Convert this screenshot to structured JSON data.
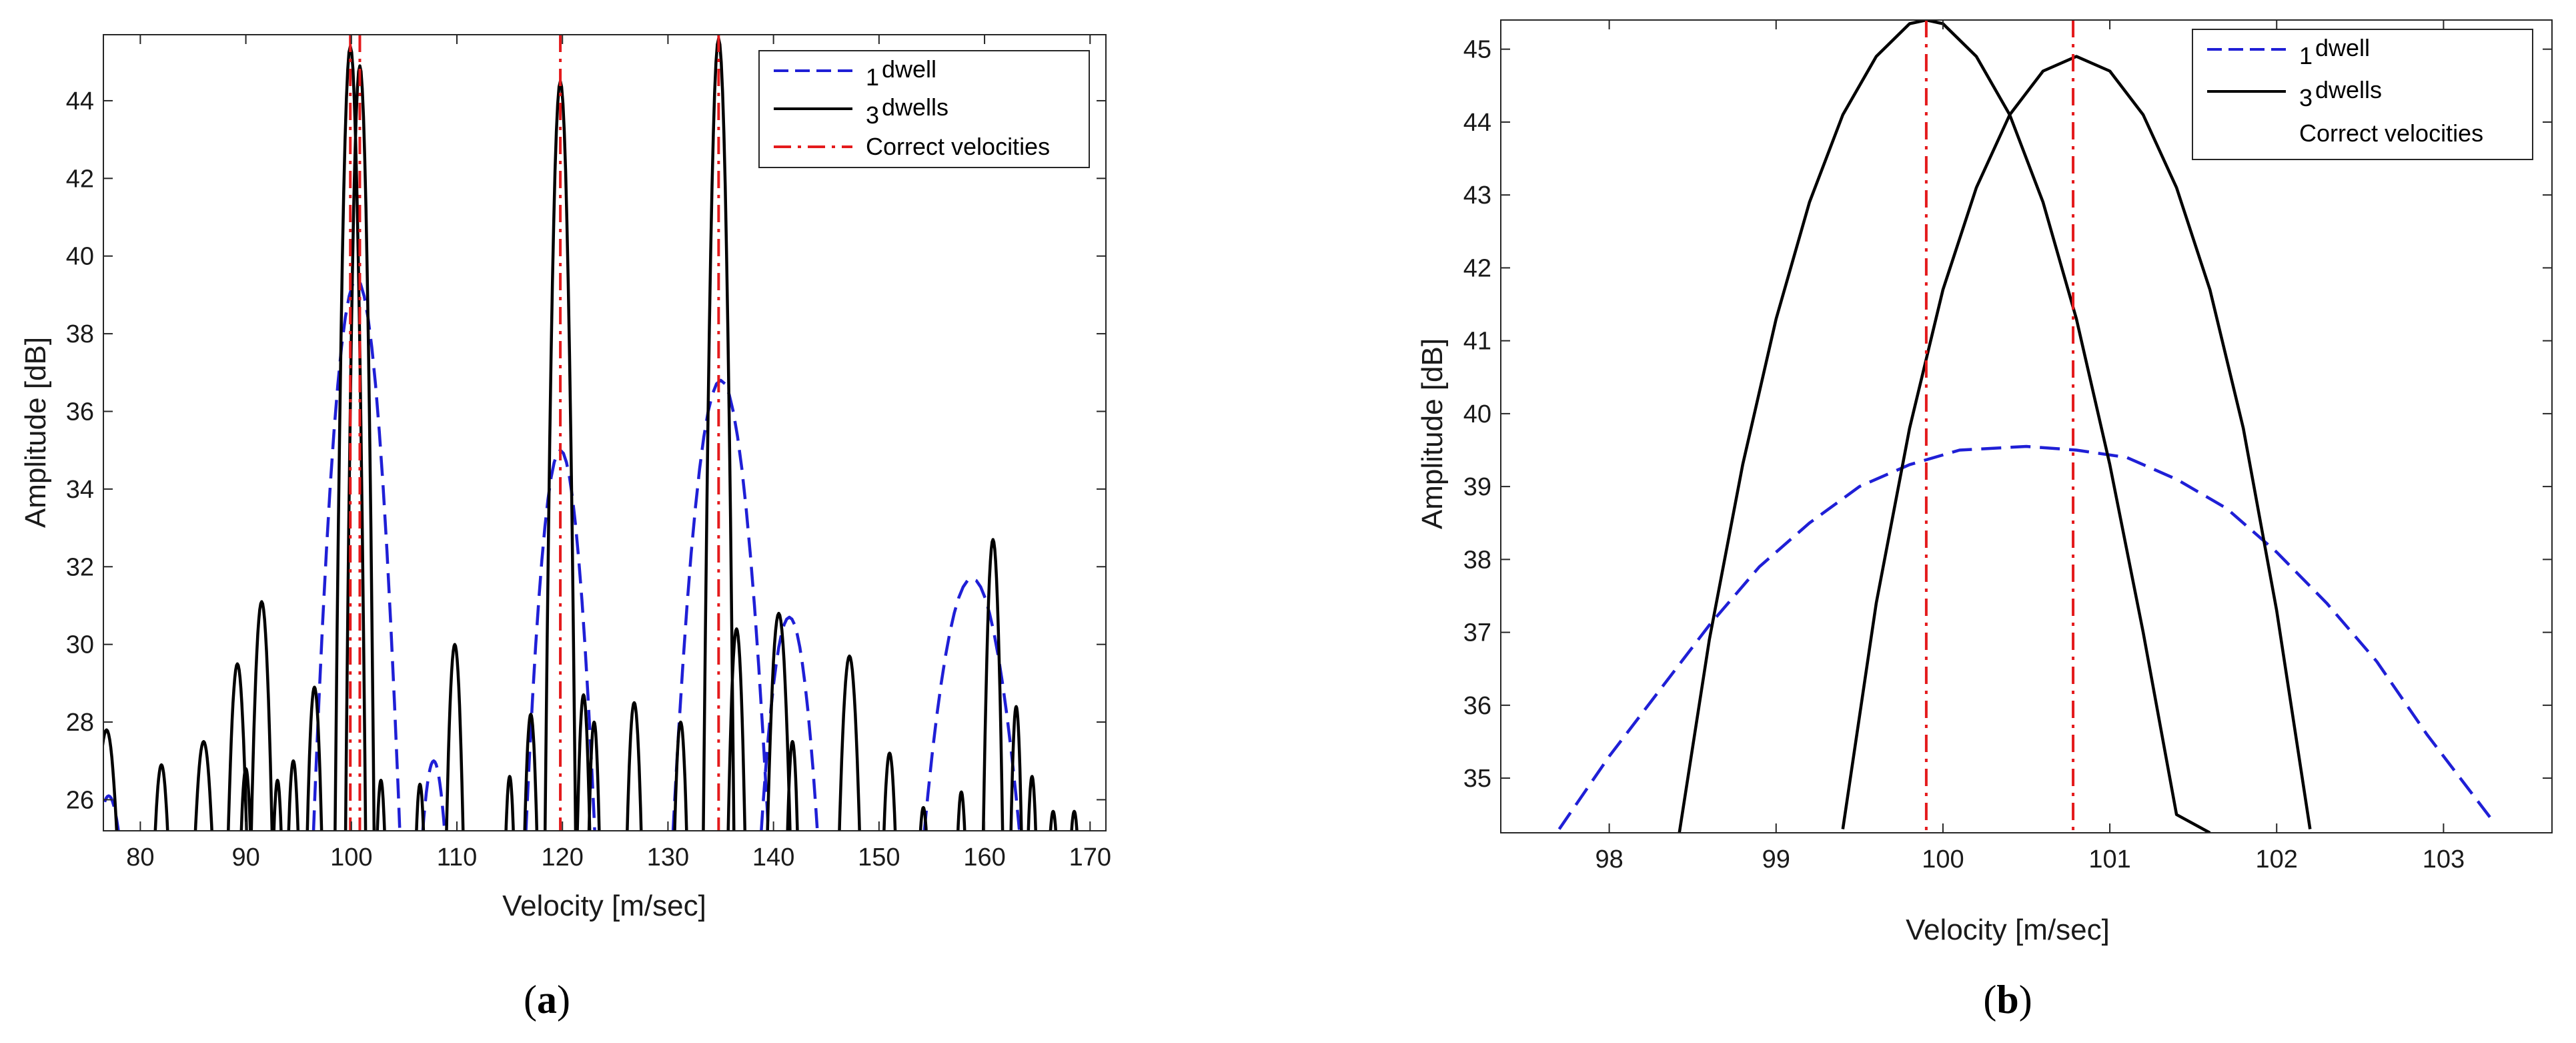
{
  "panels": [
    {
      "label_open": "(",
      "letter": "a",
      "label_close": ")"
    },
    {
      "label_open": "(",
      "letter": "b",
      "label_close": ")"
    }
  ],
  "chart_data": [
    {
      "type": "line",
      "id": "a",
      "xlabel": "Velocity [m/sec]",
      "ylabel": "Amplitude [dB]",
      "xlim": [
        76.5,
        171.5
      ],
      "ylim": [
        25.2,
        45.7
      ],
      "xticks": [
        80,
        90,
        100,
        110,
        120,
        130,
        140,
        150,
        160,
        170
      ],
      "yticks": [
        26,
        28,
        30,
        32,
        34,
        36,
        38,
        40,
        42,
        44
      ],
      "legend_position": "top-right",
      "legend": [
        {
          "num": "1",
          "text": "dwell",
          "style": "dashed-blue"
        },
        {
          "num": "3",
          "text": "dwells",
          "style": "solid-black"
        },
        {
          "num": "",
          "text": "Correct velocities",
          "style": "dashdot-red"
        }
      ],
      "series": [
        {
          "name": "1 dwell",
          "color": "#1f1fd6",
          "style": "dashed",
          "lobes": [
            {
              "center": 77.0,
              "peak": 26.1,
              "half_width": 1.5
            },
            {
              "center": 100.5,
              "peak": 39.4,
              "half_width": 4.3
            },
            {
              "center": 107.8,
              "peak": 27.0,
              "half_width": 1.4
            },
            {
              "center": 119.8,
              "peak": 35.0,
              "half_width": 3.5
            },
            {
              "center": 135.0,
              "peak": 36.8,
              "half_width": 4.8
            },
            {
              "center": 141.5,
              "peak": 30.7,
              "half_width": 3.0
            },
            {
              "center": 158.8,
              "peak": 31.7,
              "half_width": 5.0
            }
          ]
        },
        {
          "name": "3 dwells",
          "color": "#000000",
          "style": "solid",
          "lobes": [
            {
              "center": 76.8,
              "peak": 27.8,
              "half_width": 1.2
            },
            {
              "center": 82.0,
              "peak": 26.9,
              "half_width": 0.8
            },
            {
              "center": 86.0,
              "peak": 27.5,
              "half_width": 1.0
            },
            {
              "center": 89.2,
              "peak": 29.5,
              "half_width": 1.0
            },
            {
              "center": 90.0,
              "peak": 26.8,
              "half_width": 0.6
            },
            {
              "center": 91.5,
              "peak": 31.1,
              "half_width": 1.1
            },
            {
              "center": 93.0,
              "peak": 26.5,
              "half_width": 0.5
            },
            {
              "center": 94.5,
              "peak": 27.0,
              "half_width": 0.6
            },
            {
              "center": 96.5,
              "peak": 28.9,
              "half_width": 0.8
            },
            {
              "center": 99.9,
              "peak": 45.4,
              "half_width": 1.5
            },
            {
              "center": 100.8,
              "peak": 44.9,
              "half_width": 1.4
            },
            {
              "center": 102.8,
              "peak": 26.5,
              "half_width": 0.5
            },
            {
              "center": 106.5,
              "peak": 26.4,
              "half_width": 0.5
            },
            {
              "center": 109.8,
              "peak": 30.0,
              "half_width": 0.9
            },
            {
              "center": 115.0,
              "peak": 26.6,
              "half_width": 0.5
            },
            {
              "center": 117.0,
              "peak": 28.2,
              "half_width": 0.7
            },
            {
              "center": 119.8,
              "peak": 44.5,
              "half_width": 1.5
            },
            {
              "center": 122.0,
              "peak": 28.7,
              "half_width": 0.7
            },
            {
              "center": 123.0,
              "peak": 28.0,
              "half_width": 0.6
            },
            {
              "center": 126.8,
              "peak": 28.5,
              "half_width": 0.8
            },
            {
              "center": 131.2,
              "peak": 28.0,
              "half_width": 0.7
            },
            {
              "center": 134.8,
              "peak": 45.6,
              "half_width": 1.5
            },
            {
              "center": 136.5,
              "peak": 30.4,
              "half_width": 0.9
            },
            {
              "center": 140.5,
              "peak": 30.8,
              "half_width": 1.2
            },
            {
              "center": 141.8,
              "peak": 27.5,
              "half_width": 0.6
            },
            {
              "center": 147.2,
              "peak": 29.7,
              "half_width": 1.1
            },
            {
              "center": 151.0,
              "peak": 27.2,
              "half_width": 0.7
            },
            {
              "center": 154.2,
              "peak": 25.8,
              "half_width": 0.5
            },
            {
              "center": 157.8,
              "peak": 26.2,
              "half_width": 0.5
            },
            {
              "center": 160.8,
              "peak": 32.7,
              "half_width": 1.0
            },
            {
              "center": 163.0,
              "peak": 28.4,
              "half_width": 0.6
            },
            {
              "center": 164.5,
              "peak": 26.6,
              "half_width": 0.5
            },
            {
              "center": 166.5,
              "peak": 25.7,
              "half_width": 0.5
            },
            {
              "center": 168.5,
              "peak": 25.7,
              "half_width": 0.5
            }
          ]
        }
      ],
      "vlines": {
        "name": "Correct velocities",
        "color": "#e41a1c",
        "style": "dashdot",
        "x": [
          99.9,
          100.8,
          119.8,
          134.8
        ]
      }
    },
    {
      "type": "line",
      "id": "b",
      "xlabel": "Velocity [m/sec]",
      "ylabel": "Amplitude [dB]",
      "xlim": [
        97.35,
        103.65
      ],
      "ylim": [
        34.25,
        45.4
      ],
      "xticks": [
        98,
        99,
        100,
        101,
        102,
        103
      ],
      "yticks": [
        35,
        36,
        37,
        38,
        39,
        40,
        41,
        42,
        43,
        44,
        45
      ],
      "legend_position": "top-right",
      "legend": [
        {
          "num": "1",
          "text": "dwell",
          "style": "dashed-blue"
        },
        {
          "num": "3",
          "text": "dwells",
          "style": "solid-black"
        },
        {
          "num": "",
          "text": "Correct velocities",
          "style": "none"
        }
      ],
      "series": [
        {
          "name": "1 dwell",
          "color": "#1f1fd6",
          "style": "dashed",
          "x": [
            97.7,
            98.0,
            98.3,
            98.6,
            98.9,
            99.2,
            99.5,
            99.8,
            100.1,
            100.5,
            100.8,
            101.1,
            101.4,
            101.7,
            102.0,
            102.3,
            102.6,
            102.9,
            103.3
          ],
          "y": [
            34.3,
            35.3,
            36.2,
            37.1,
            37.9,
            38.5,
            39.0,
            39.3,
            39.5,
            39.55,
            39.5,
            39.4,
            39.1,
            38.7,
            38.1,
            37.4,
            36.6,
            35.6,
            34.4
          ]
        },
        {
          "name": "3 dwells",
          "color": "#000000",
          "style": "solid",
          "x": [
            98.42,
            98.6,
            98.8,
            99.0,
            99.2,
            99.4,
            99.6,
            99.8,
            99.9,
            100.0,
            100.2,
            100.4,
            100.6,
            100.8,
            101.0,
            101.2,
            101.4,
            101.6
          ],
          "y": [
            34.25,
            36.9,
            39.3,
            41.3,
            42.9,
            44.1,
            44.9,
            45.35,
            45.4,
            45.35,
            44.9,
            44.1,
            42.9,
            41.3,
            39.3,
            37.0,
            34.5,
            34.25
          ]
        },
        {
          "name": "3 dwells",
          "color": "#000000",
          "style": "solid",
          "x": [
            99.4,
            99.6,
            99.8,
            100.0,
            100.2,
            100.4,
            100.6,
            100.8,
            101.0,
            101.2,
            101.4,
            101.6,
            101.8,
            102.0,
            102.2
          ],
          "y": [
            34.3,
            37.4,
            39.8,
            41.7,
            43.1,
            44.1,
            44.7,
            44.9,
            44.7,
            44.1,
            43.1,
            41.7,
            39.8,
            37.3,
            34.3
          ]
        }
      ],
      "vlines": {
        "name": "Correct velocities",
        "color": "#e41a1c",
        "style": "dashdot",
        "x": [
          99.9,
          100.78
        ]
      }
    }
  ]
}
